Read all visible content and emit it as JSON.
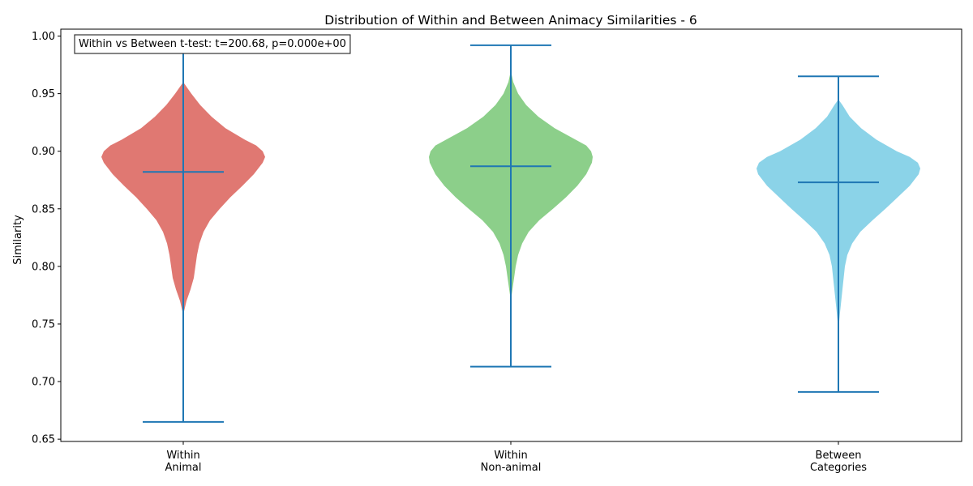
{
  "chart_data": {
    "type": "violin",
    "title": "Distribution of Within and Between Animacy Similarities - 6",
    "xlabel": "",
    "ylabel": "Similarity",
    "ylim": [
      0.648,
      1.006
    ],
    "yticks": [
      "0.65",
      "0.70",
      "0.75",
      "0.80",
      "0.85",
      "0.90",
      "0.95",
      "1.00"
    ],
    "ytick_values": [
      0.65,
      0.7,
      0.75,
      0.8,
      0.85,
      0.9,
      0.95,
      1.0
    ],
    "annotation": "Within vs Between t-test: t=200.68, p=0.000e+00",
    "grid": false,
    "line_color": "#1f77b4",
    "categories": [
      {
        "label_lines": [
          "Within",
          "Animal"
        ],
        "color": "#e07872",
        "min": 0.665,
        "max": 0.992,
        "mean": 0.882,
        "density": [
          [
            0.758,
            0
          ],
          [
            0.77,
            4
          ],
          [
            0.78,
            9
          ],
          [
            0.79,
            13
          ],
          [
            0.8,
            15
          ],
          [
            0.81,
            17
          ],
          [
            0.82,
            20
          ],
          [
            0.83,
            25
          ],
          [
            0.84,
            33
          ],
          [
            0.85,
            45
          ],
          [
            0.86,
            58
          ],
          [
            0.87,
            73
          ],
          [
            0.88,
            87
          ],
          [
            0.89,
            98
          ],
          [
            0.895,
            101
          ],
          [
            0.9,
            98
          ],
          [
            0.905,
            90
          ],
          [
            0.91,
            76
          ],
          [
            0.92,
            52
          ],
          [
            0.93,
            35
          ],
          [
            0.94,
            21
          ],
          [
            0.95,
            10
          ],
          [
            0.955,
            5
          ],
          [
            0.96,
            0
          ]
        ]
      },
      {
        "label_lines": [
          "Within",
          "Non-animal"
        ],
        "color": "#8ccf8a",
        "min": 0.713,
        "max": 0.992,
        "mean": 0.887,
        "density": [
          [
            0.77,
            0
          ],
          [
            0.78,
            2
          ],
          [
            0.79,
            4
          ],
          [
            0.8,
            6
          ],
          [
            0.81,
            9
          ],
          [
            0.82,
            14
          ],
          [
            0.83,
            22
          ],
          [
            0.84,
            35
          ],
          [
            0.85,
            52
          ],
          [
            0.86,
            68
          ],
          [
            0.87,
            82
          ],
          [
            0.88,
            93
          ],
          [
            0.89,
            100
          ],
          [
            0.895,
            101
          ],
          [
            0.9,
            99
          ],
          [
            0.905,
            93
          ],
          [
            0.91,
            80
          ],
          [
            0.92,
            54
          ],
          [
            0.93,
            34
          ],
          [
            0.94,
            19
          ],
          [
            0.95,
            9
          ],
          [
            0.96,
            3
          ],
          [
            0.97,
            0
          ]
        ]
      },
      {
        "label_lines": [
          "Between",
          "Categories"
        ],
        "color": "#8bd3e8",
        "min": 0.691,
        "max": 0.965,
        "mean": 0.873,
        "density": [
          [
            0.745,
            0
          ],
          [
            0.76,
            2
          ],
          [
            0.78,
            5
          ],
          [
            0.8,
            8
          ],
          [
            0.81,
            11
          ],
          [
            0.82,
            17
          ],
          [
            0.83,
            27
          ],
          [
            0.84,
            42
          ],
          [
            0.85,
            58
          ],
          [
            0.86,
            73
          ],
          [
            0.87,
            88
          ],
          [
            0.88,
            99
          ],
          [
            0.885,
            101
          ],
          [
            0.89,
            98
          ],
          [
            0.895,
            88
          ],
          [
            0.9,
            72
          ],
          [
            0.91,
            47
          ],
          [
            0.92,
            28
          ],
          [
            0.93,
            14
          ],
          [
            0.94,
            5
          ],
          [
            0.945,
            0
          ]
        ]
      }
    ]
  }
}
